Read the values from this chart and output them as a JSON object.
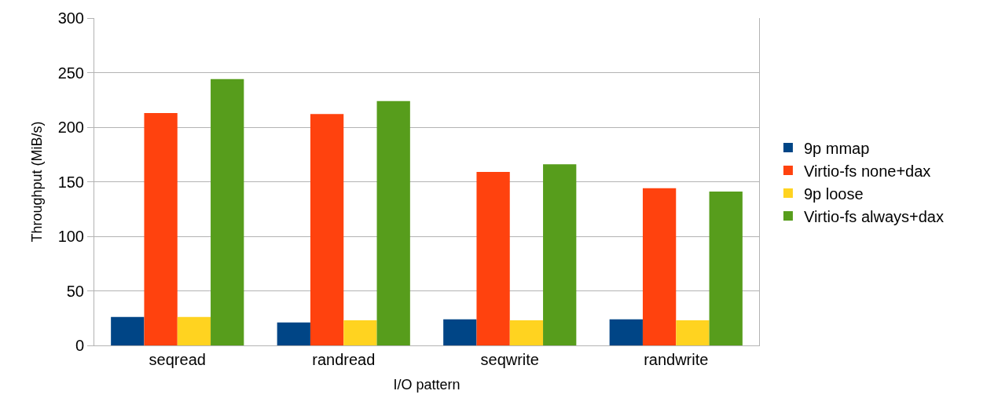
{
  "chart_data": {
    "type": "bar",
    "xlabel": "I/O pattern",
    "ylabel": "Throughput (MiB/s)",
    "categories": [
      "seqread",
      "randread",
      "seqwrite",
      "randwrite"
    ],
    "series": [
      {
        "name": "9p mmap",
        "color": "#004586",
        "values": [
          26,
          21,
          24,
          24
        ]
      },
      {
        "name": "Virtio-fs none+dax",
        "color": "#ff420e",
        "values": [
          213,
          212,
          159,
          144
        ]
      },
      {
        "name": "9p loose",
        "color": "#ffd320",
        "values": [
          26,
          23,
          23,
          23
        ]
      },
      {
        "name": "Virtio-fs always+dax",
        "color": "#579d1c",
        "values": [
          244,
          224,
          166,
          141
        ]
      }
    ],
    "ylim": [
      0,
      300
    ],
    "yticks": [
      0,
      50,
      100,
      150,
      200,
      250,
      300
    ],
    "grid": "y",
    "legend": "right"
  }
}
